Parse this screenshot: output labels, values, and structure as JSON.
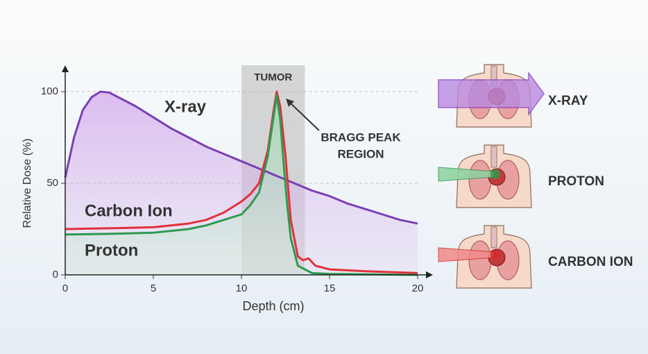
{
  "chart_data": {
    "type": "line",
    "xlabel": "Depth (cm)",
    "ylabel": "Relative Dose (%)",
    "xlim": [
      0,
      20
    ],
    "xticks": [
      0,
      5,
      10,
      15,
      20
    ],
    "ylim": [
      0,
      100
    ],
    "yticks": [
      0,
      50,
      100
    ],
    "grid": true,
    "series": [
      {
        "name": "X-ray",
        "color": "#7b3fb5",
        "fill": true,
        "x": [
          0,
          0.5,
          1,
          1.5,
          2,
          2.5,
          3,
          4,
          5,
          6,
          7,
          8,
          9,
          10,
          11,
          12,
          13,
          14,
          15,
          16,
          17,
          18,
          19,
          20
        ],
        "values": [
          53,
          75,
          90,
          97,
          100,
          99.5,
          97,
          92,
          86,
          80,
          75,
          70,
          66,
          62,
          58,
          54,
          50,
          46,
          43,
          39,
          36,
          33,
          30,
          28
        ]
      },
      {
        "name": "Carbon Ion",
        "color": "#e0303a",
        "fill": false,
        "x": [
          0,
          3,
          5,
          7,
          8,
          9,
          10,
          10.5,
          11,
          11.5,
          11.8,
          12,
          12.2,
          12.5,
          12.8,
          13.2,
          13.5,
          13.8,
          14.2,
          15,
          17,
          20
        ],
        "values": [
          25,
          25.5,
          26,
          28,
          30,
          34,
          40,
          44,
          50,
          68,
          88,
          100,
          92,
          65,
          30,
          10,
          8,
          9,
          5,
          3,
          2,
          1
        ]
      },
      {
        "name": "Proton",
        "color": "#2e9a4e",
        "fill": true,
        "x": [
          0,
          3,
          5,
          7,
          8,
          9,
          10,
          10.5,
          11,
          11.5,
          11.8,
          12,
          12.2,
          12.4,
          12.6,
          12.8,
          13.2,
          14,
          15,
          20
        ],
        "values": [
          22,
          22.5,
          23,
          25,
          27,
          30,
          33,
          38,
          45,
          65,
          85,
          98,
          85,
          60,
          38,
          20,
          5,
          1,
          0.5,
          0
        ]
      }
    ],
    "region": {
      "label": "TUMOR",
      "xlim": [
        10,
        13.6
      ]
    },
    "peak_label": [
      "BRAGG PEAK",
      "REGION"
    ],
    "illustrations": [
      {
        "label": "X-RAY"
      },
      {
        "label": "PROTON"
      },
      {
        "label": "CARBON ION"
      }
    ]
  }
}
